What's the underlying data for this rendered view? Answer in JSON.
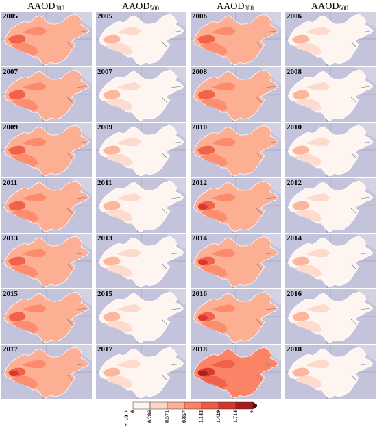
{
  "headers": [
    {
      "main": "AAOD",
      "sub": "388"
    },
    {
      "main": "AAOD",
      "sub": "500"
    },
    {
      "main": "AAOD",
      "sub": "388"
    },
    {
      "main": "AAOD",
      "sub": "500"
    }
  ],
  "panels": [
    {
      "year": "2005",
      "var": "AAOD388",
      "level": 0.45
    },
    {
      "year": "2005",
      "var": "AAOD500",
      "level": 0.12
    },
    {
      "year": "2006",
      "var": "AAOD388",
      "level": 0.48
    },
    {
      "year": "2006",
      "var": "AAOD500",
      "level": 0.12
    },
    {
      "year": "2007",
      "var": "AAOD388",
      "level": 0.47
    },
    {
      "year": "2007",
      "var": "AAOD500",
      "level": 0.12
    },
    {
      "year": "2008",
      "var": "AAOD388",
      "level": 0.5
    },
    {
      "year": "2008",
      "var": "AAOD500",
      "level": 0.12
    },
    {
      "year": "2009",
      "var": "AAOD388",
      "level": 0.45
    },
    {
      "year": "2009",
      "var": "AAOD500",
      "level": 0.12
    },
    {
      "year": "2010",
      "var": "AAOD388",
      "level": 0.46
    },
    {
      "year": "2010",
      "var": "AAOD500",
      "level": 0.12
    },
    {
      "year": "2011",
      "var": "AAOD388",
      "level": 0.47
    },
    {
      "year": "2011",
      "var": "AAOD500",
      "level": 0.12
    },
    {
      "year": "2012",
      "var": "AAOD388",
      "level": 0.52
    },
    {
      "year": "2012",
      "var": "AAOD500",
      "level": 0.13
    },
    {
      "year": "2013",
      "var": "AAOD388",
      "level": 0.5
    },
    {
      "year": "2013",
      "var": "AAOD500",
      "level": 0.13
    },
    {
      "year": "2014",
      "var": "AAOD388",
      "level": 0.55
    },
    {
      "year": "2014",
      "var": "AAOD500",
      "level": 0.13
    },
    {
      "year": "2015",
      "var": "AAOD388",
      "level": 0.5
    },
    {
      "year": "2015",
      "var": "AAOD500",
      "level": 0.13
    },
    {
      "year": "2016",
      "var": "AAOD388",
      "level": 0.53
    },
    {
      "year": "2016",
      "var": "AAOD500",
      "level": 0.13
    },
    {
      "year": "2017",
      "var": "AAOD388",
      "level": 0.57
    },
    {
      "year": "2017",
      "var": "AAOD500",
      "level": 0.15
    },
    {
      "year": "2018",
      "var": "AAOD388",
      "level": 0.62
    },
    {
      "year": "2018",
      "var": "AAOD500",
      "level": 0.15
    }
  ],
  "colorbar": {
    "unit": "× 10⁻¹",
    "ticks": [
      "0",
      "0.286",
      "0.571",
      "0.857",
      "1.143",
      "1.429",
      "1.714",
      "2"
    ],
    "colors": [
      "#fff5f0",
      "#fdd5c4",
      "#fcaf93",
      "#fb8466",
      "#ee5a42",
      "#d1352c",
      "#a61b1d",
      "#67000d"
    ]
  },
  "colors": {
    "ocean": "#c3c3dc",
    "land": "#dcdce8",
    "border": "#707080",
    "grid": "#9090a8"
  }
}
